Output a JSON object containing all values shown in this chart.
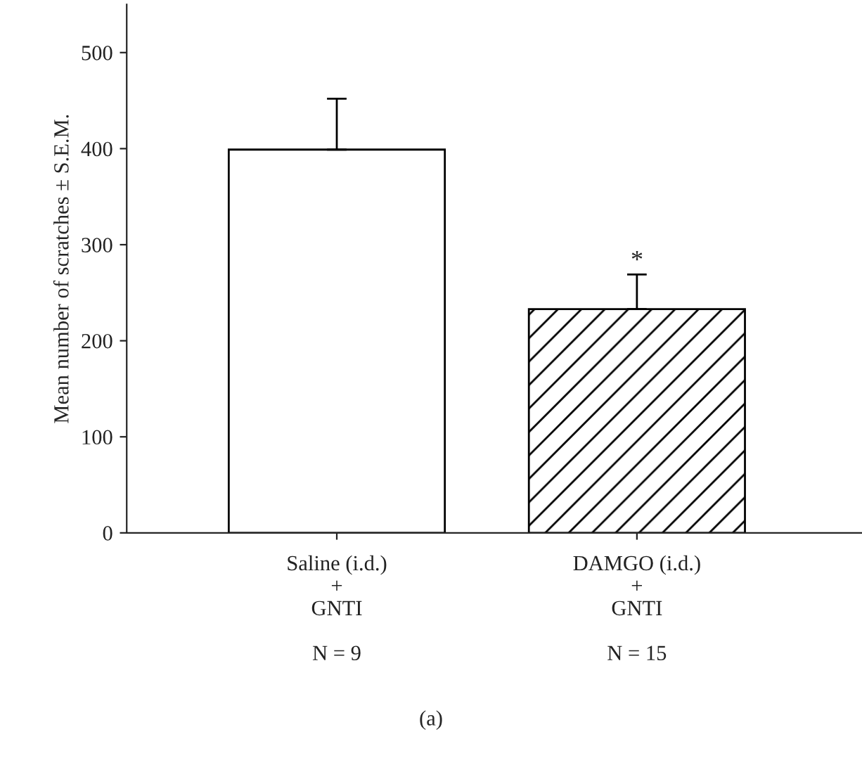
{
  "chart_data": {
    "type": "bar",
    "ylabel": "Mean number of scratches ± S.E.M.",
    "categories": [
      "Saline (i.d.)\n+\nGNTI\n\nN = 9",
      "DAMGO (i.d.)\n+\nGNTI\n\nN = 15"
    ],
    "values": [
      399,
      233
    ],
    "errors": [
      [
        399,
        452
      ],
      [
        233,
        269
      ]
    ],
    "colors": [
      "#ffffff",
      "#ffffff"
    ],
    "ylim": [
      0,
      550
    ],
    "yticks": [
      0,
      100,
      200,
      300,
      400,
      500
    ],
    "grid": false,
    "annotations": [
      "*",
      "(a)"
    ]
  }
}
